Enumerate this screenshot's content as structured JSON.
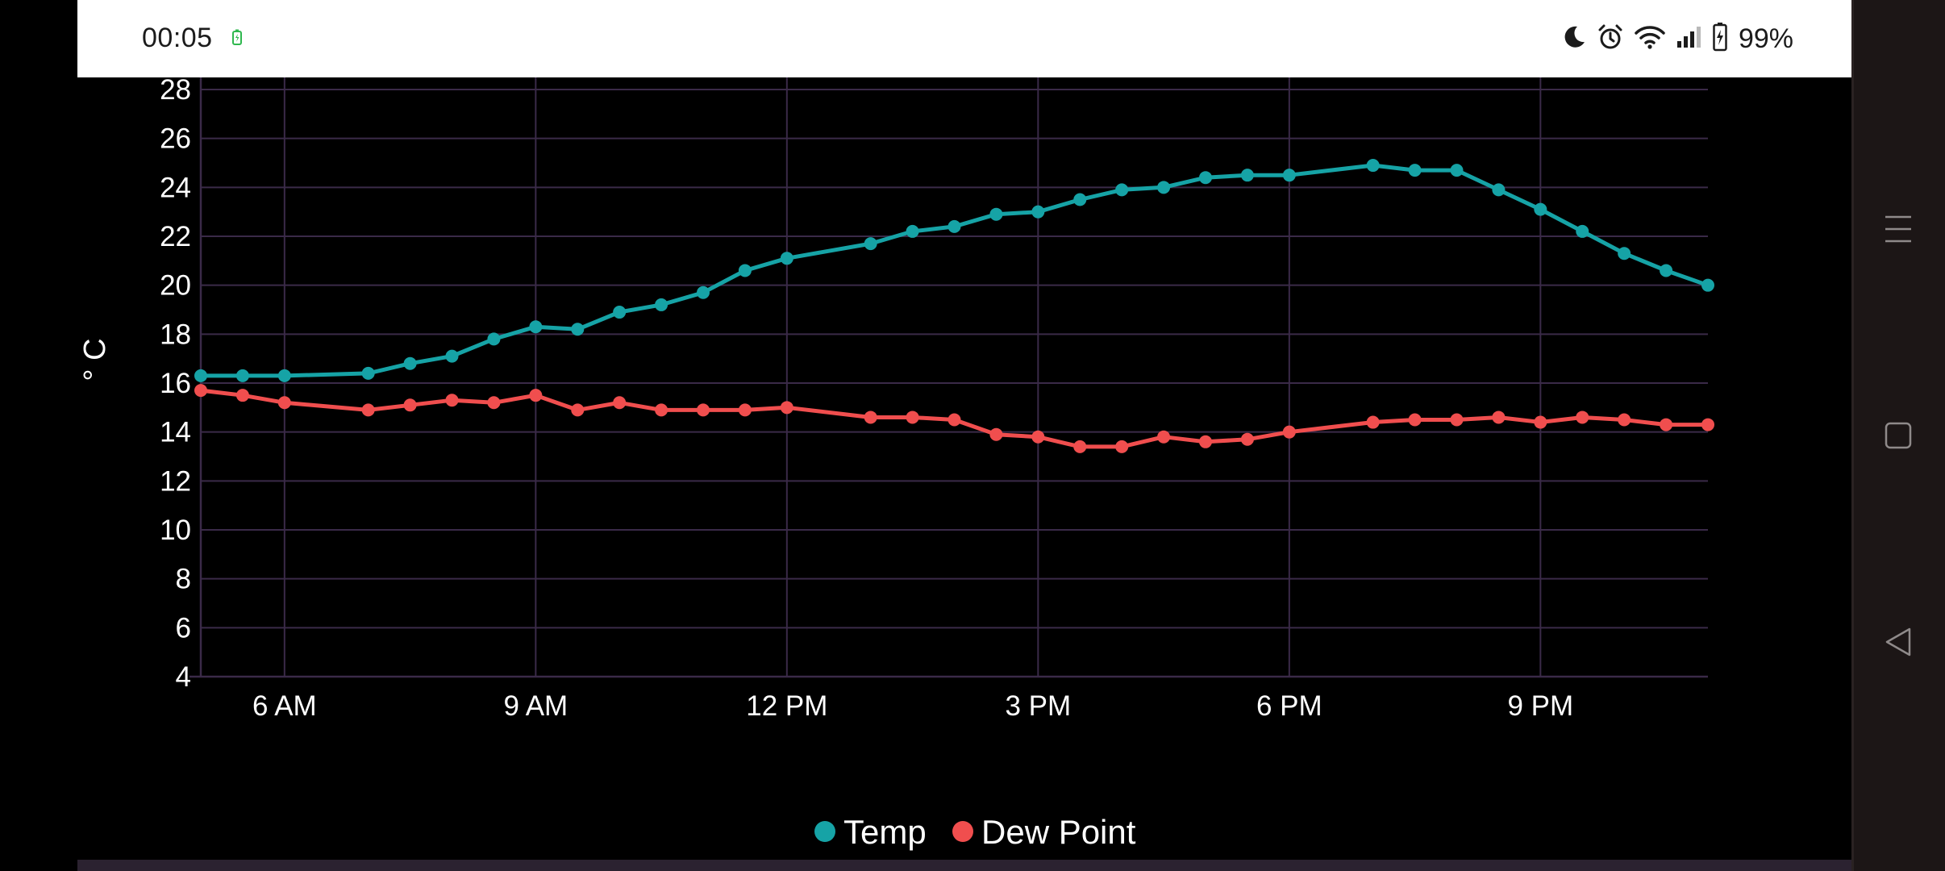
{
  "status_bar": {
    "time": "00:05",
    "battery": "99%",
    "icons": [
      "battery-charging-icon",
      "moon-icon",
      "alarm-icon",
      "wifi-icon",
      "signal-icon",
      "battery-icon"
    ]
  },
  "nav_bar": {
    "buttons": [
      "menu-icon",
      "home-square-icon",
      "back-triangle-icon"
    ]
  },
  "colors": {
    "temp": "#16a3a6",
    "dew_point": "#f04e4e",
    "grid": "#3a2a48",
    "background": "#000000"
  },
  "chart_data": {
    "type": "line",
    "title": "",
    "xlabel": "",
    "ylabel": "° C",
    "ylim": [
      4,
      28
    ],
    "yticks": [
      4,
      6,
      8,
      10,
      12,
      14,
      16,
      18,
      20,
      22,
      24,
      26,
      28
    ],
    "xlim": [
      5,
      23
    ],
    "xticks": [
      {
        "value": 6,
        "label": "6 AM"
      },
      {
        "value": 9,
        "label": "9 AM"
      },
      {
        "value": 12,
        "label": "12 PM"
      },
      {
        "value": 15,
        "label": "3 PM"
      },
      {
        "value": 18,
        "label": "6 PM"
      },
      {
        "value": 21,
        "label": "9 PM"
      }
    ],
    "grid": true,
    "legend": "bottom-center",
    "series": [
      {
        "name": "Temp",
        "points": [
          [
            5.0,
            16.3
          ],
          [
            5.5,
            16.3
          ],
          [
            6.0,
            16.3
          ],
          [
            7.0,
            16.4
          ],
          [
            7.5,
            16.8
          ],
          [
            8.0,
            17.1
          ],
          [
            8.5,
            17.8
          ],
          [
            9.0,
            18.3
          ],
          [
            9.5,
            18.2
          ],
          [
            10.0,
            18.9
          ],
          [
            10.5,
            19.2
          ],
          [
            11.0,
            19.7
          ],
          [
            11.5,
            20.6
          ],
          [
            12.0,
            21.1
          ],
          [
            13.0,
            21.7
          ],
          [
            13.5,
            22.2
          ],
          [
            14.0,
            22.4
          ],
          [
            14.5,
            22.9
          ],
          [
            15.0,
            23.0
          ],
          [
            15.5,
            23.5
          ],
          [
            16.0,
            23.9
          ],
          [
            16.5,
            24.0
          ],
          [
            17.0,
            24.4
          ],
          [
            17.5,
            24.5
          ],
          [
            18.0,
            24.5
          ],
          [
            19.0,
            24.9
          ],
          [
            19.5,
            24.7
          ],
          [
            20.0,
            24.7
          ],
          [
            20.5,
            23.9
          ],
          [
            21.0,
            23.1
          ],
          [
            21.5,
            22.2
          ],
          [
            22.0,
            21.3
          ],
          [
            22.5,
            20.6
          ],
          [
            23.0,
            20.0
          ]
        ]
      },
      {
        "name": "Dew Point",
        "points": [
          [
            5.0,
            15.7
          ],
          [
            5.5,
            15.5
          ],
          [
            6.0,
            15.2
          ],
          [
            7.0,
            14.9
          ],
          [
            7.5,
            15.1
          ],
          [
            8.0,
            15.3
          ],
          [
            8.5,
            15.2
          ],
          [
            9.0,
            15.5
          ],
          [
            9.5,
            14.9
          ],
          [
            10.0,
            15.2
          ],
          [
            10.5,
            14.9
          ],
          [
            11.0,
            14.9
          ],
          [
            11.5,
            14.9
          ],
          [
            12.0,
            15.0
          ],
          [
            13.0,
            14.6
          ],
          [
            13.5,
            14.6
          ],
          [
            14.0,
            14.5
          ],
          [
            14.5,
            13.9
          ],
          [
            15.0,
            13.8
          ],
          [
            15.5,
            13.4
          ],
          [
            16.0,
            13.4
          ],
          [
            16.5,
            13.8
          ],
          [
            17.0,
            13.6
          ],
          [
            17.5,
            13.7
          ],
          [
            18.0,
            14.0
          ],
          [
            19.0,
            14.4
          ],
          [
            19.5,
            14.5
          ],
          [
            20.0,
            14.5
          ],
          [
            20.5,
            14.6
          ],
          [
            21.0,
            14.4
          ],
          [
            21.5,
            14.6
          ],
          [
            22.0,
            14.5
          ],
          [
            22.5,
            14.3
          ],
          [
            23.0,
            14.3
          ]
        ]
      }
    ]
  }
}
